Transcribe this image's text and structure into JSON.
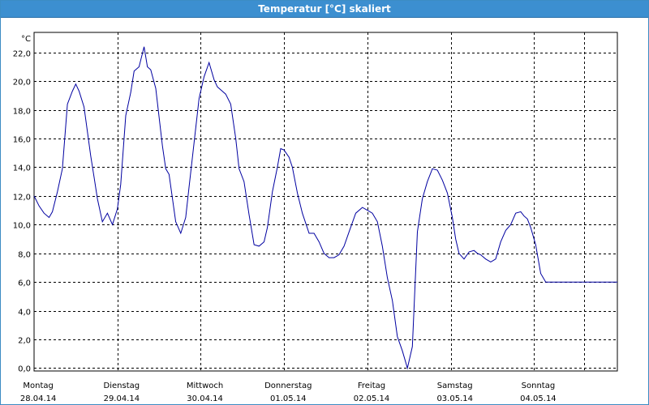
{
  "window": {
    "title": "Temperatur [°C] skaliert"
  },
  "chart_data": {
    "type": "line",
    "title": "Temperatur [°C] skaliert",
    "ylabel": "°C",
    "ylim": [
      -0.2,
      23.4
    ],
    "yticks": [
      "0,0",
      "2,0",
      "4,0",
      "6,0",
      "8,0",
      "10,0",
      "12,0",
      "14,0",
      "16,0",
      "18,0",
      "20,0",
      "22,0"
    ],
    "ytick_values": [
      0,
      2,
      4,
      6,
      8,
      10,
      12,
      14,
      16,
      18,
      20,
      22
    ],
    "xdays": [
      {
        "day": "Montag",
        "date": "28.04.14"
      },
      {
        "day": "Dienstag",
        "date": "29.04.14"
      },
      {
        "day": "Mittwoch",
        "date": "30.04.14"
      },
      {
        "day": "Donnerstag",
        "date": "01.05.14"
      },
      {
        "day": "Freitag",
        "date": "02.05.14"
      },
      {
        "day": "Samstag",
        "date": "03.05.14"
      },
      {
        "day": "Sonntag",
        "date": "04.05.14"
      }
    ],
    "xlim": [
      0,
      7
    ],
    "grid": true,
    "color": "#0000a0",
    "series": [
      {
        "x": [
          0,
          0.06,
          0.12,
          0.18,
          0.22,
          0.28,
          0.34,
          0.4,
          0.46,
          0.5,
          0.54,
          0.6,
          0.64,
          0.68,
          0.72,
          0.76,
          0.82,
          0.88,
          0.94,
          1.0,
          1.04,
          1.1,
          1.16,
          1.2,
          1.26,
          1.32,
          1.36,
          1.4,
          1.46,
          1.5,
          1.54,
          1.58,
          1.62,
          1.7,
          1.76,
          1.82,
          1.86,
          1.92,
          1.98,
          2.04,
          2.1,
          2.16,
          2.2,
          2.26,
          2.3,
          2.36,
          2.42,
          2.46,
          2.52,
          2.58,
          2.64,
          2.7,
          2.76,
          2.8,
          2.86,
          2.92,
          2.96,
          3.0,
          3.06,
          3.1,
          3.16,
          3.22,
          3.3,
          3.36,
          3.42,
          3.48,
          3.54,
          3.6,
          3.66,
          3.72,
          3.78,
          3.86,
          3.94,
          4.0,
          4.06,
          4.12,
          4.18,
          4.24,
          4.3,
          4.36,
          4.42,
          4.48,
          4.54,
          4.6,
          4.66,
          4.72,
          4.78,
          4.84,
          4.9,
          4.96,
          5.02,
          5.06,
          5.1,
          5.16,
          5.22,
          5.28,
          5.32,
          5.36,
          5.42,
          5.48,
          5.54,
          5.6,
          5.66,
          5.72,
          5.78,
          5.84,
          5.88,
          5.92,
          5.96,
          6.02,
          6.08,
          6.14,
          6.2,
          6.26,
          6.32,
          6.38,
          6.44,
          6.5,
          6.56,
          6.62,
          6.68,
          6.74,
          6.8,
          6.88,
          6.94,
          7.0
        ],
        "y": [
          12.0,
          11.3,
          10.8,
          10.5,
          10.9,
          12.3,
          13.9,
          18.4,
          19.3,
          19.8,
          19.3,
          18.2,
          16.5,
          14.8,
          13.3,
          11.8,
          10.2,
          10.8,
          10.0,
          11.1,
          12.8,
          17.6,
          19.2,
          20.7,
          21.0,
          22.4,
          21.0,
          20.8,
          19.5,
          17.5,
          15.5,
          13.9,
          13.5,
          10.2,
          9.4,
          10.5,
          12.6,
          15.7,
          18.8,
          20.3,
          21.3,
          20.1,
          19.6,
          19.3,
          19.1,
          18.4,
          16.0,
          13.9,
          13.0,
          10.7,
          8.6,
          8.5,
          8.8,
          9.8,
          12.3,
          14.0,
          15.3,
          15.2,
          14.7,
          14.0,
          12.2,
          10.8,
          9.4,
          9.4,
          8.8,
          8.0,
          7.7,
          7.7,
          7.9,
          8.5,
          9.5,
          10.8,
          11.2,
          11.0,
          10.8,
          10.2,
          8.5,
          6.3,
          4.7,
          2.2,
          1.2,
          0.0,
          1.5,
          9.5,
          11.8,
          13.0,
          13.9,
          13.8,
          13.1,
          12.2,
          10.5,
          9.0,
          8.0,
          7.6,
          8.1,
          8.2,
          8.0,
          7.9,
          7.6,
          7.4,
          7.6,
          8.8,
          9.6,
          10.0,
          10.8,
          10.9,
          10.6,
          10.4,
          9.8,
          8.6,
          6.6,
          6.0,
          6.0,
          6.0,
          6.0,
          6.0,
          6.0,
          6.0,
          6.0,
          6.0,
          6.0,
          6.0,
          6.0,
          6.0,
          6.0,
          6.0
        ]
      }
    ]
  }
}
